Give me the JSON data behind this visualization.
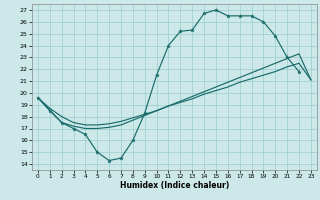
{
  "xlabel": "Humidex (Indice chaleur)",
  "bg_color": "#cce8e8",
  "grid_color": "#99cccc",
  "line_color": "#1a6b6b",
  "xlim": [
    -0.5,
    23.5
  ],
  "ylim": [
    13.5,
    27.5
  ],
  "xticks": [
    0,
    1,
    2,
    3,
    4,
    5,
    6,
    7,
    8,
    9,
    10,
    11,
    12,
    13,
    14,
    15,
    16,
    17,
    18,
    19,
    20,
    21,
    22,
    23
  ],
  "yticks": [
    14,
    15,
    16,
    17,
    18,
    19,
    20,
    21,
    22,
    23,
    24,
    25,
    26,
    27
  ],
  "line1_x": [
    0,
    1,
    2,
    3,
    4,
    5,
    6,
    7,
    8,
    9,
    10,
    11,
    12,
    13,
    14,
    15,
    16,
    17,
    18,
    19,
    20,
    21,
    22
  ],
  "line1_y": [
    19.6,
    18.5,
    17.5,
    17.0,
    16.5,
    15.0,
    14.3,
    14.5,
    16.0,
    18.3,
    21.5,
    24.0,
    25.2,
    25.3,
    26.7,
    27.0,
    26.5,
    26.5,
    26.5,
    26.0,
    24.8,
    23.0,
    21.8
  ],
  "line2_x": [
    0,
    1,
    2,
    3,
    4,
    5,
    6,
    7,
    8,
    9,
    10,
    11,
    12,
    13,
    14,
    15,
    16,
    17,
    18,
    19,
    20,
    21,
    22,
    23
  ],
  "line2_y": [
    19.6,
    18.7,
    18.0,
    17.5,
    17.3,
    17.3,
    17.4,
    17.6,
    17.9,
    18.2,
    18.5,
    18.9,
    19.2,
    19.5,
    19.9,
    20.2,
    20.5,
    20.9,
    21.2,
    21.5,
    21.8,
    22.2,
    22.5,
    21.1
  ],
  "line3_x": [
    0,
    2,
    3,
    4,
    5,
    6,
    7,
    8,
    9,
    10,
    11,
    12,
    13,
    14,
    15,
    16,
    17,
    18,
    19,
    20,
    21,
    22,
    23
  ],
  "line3_y": [
    19.6,
    17.5,
    17.2,
    17.0,
    17.0,
    17.1,
    17.3,
    17.7,
    18.1,
    18.5,
    18.9,
    19.3,
    19.7,
    20.1,
    20.5,
    20.9,
    21.3,
    21.7,
    22.1,
    22.5,
    22.9,
    23.3,
    21.1
  ]
}
